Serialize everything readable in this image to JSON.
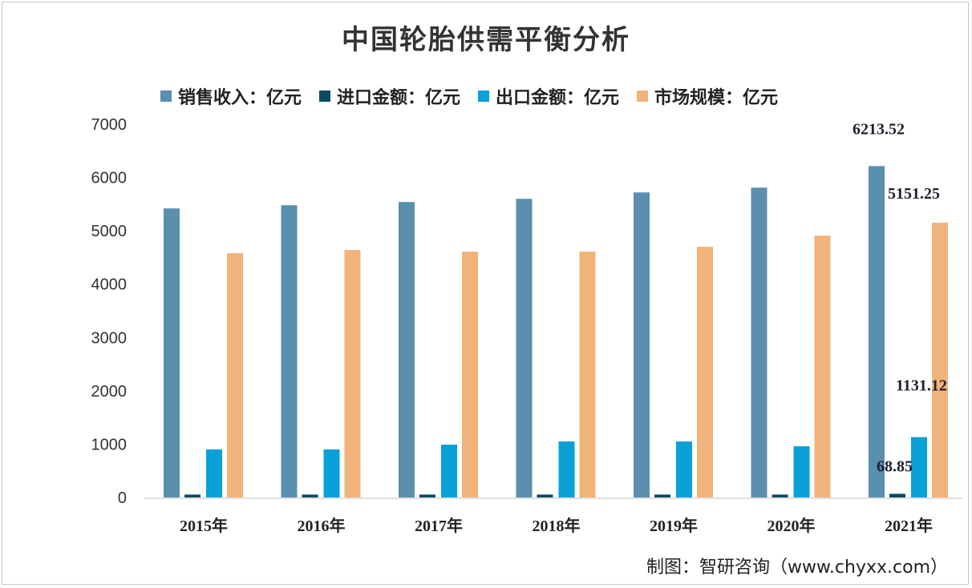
{
  "chart_data": {
    "type": "bar",
    "title": "中国轮胎供需平衡分析",
    "categories": [
      "2015年",
      "2016年",
      "2017年",
      "2018年",
      "2019年",
      "2020年",
      "2021年"
    ],
    "series": [
      {
        "name": "销售收入：亿元",
        "color": "#5b8fae",
        "values": [
          5420,
          5480,
          5540,
          5600,
          5720,
          5810,
          6213.52
        ]
      },
      {
        "name": "进口金额：亿元",
        "color": "#0d4a63",
        "values": [
          55,
          55,
          55,
          55,
          55,
          55,
          68.85
        ]
      },
      {
        "name": "出口金额：亿元",
        "color": "#0aa0d8",
        "values": [
          900,
          900,
          990,
          1050,
          1050,
          960,
          1131.12
        ]
      },
      {
        "name": "市场规模：亿元",
        "color": "#f0b47a",
        "values": [
          4580,
          4640,
          4610,
          4610,
          4700,
          4910,
          5151.25
        ]
      }
    ],
    "data_labels": [
      "6213.52",
      "68.85",
      "1131.12",
      "5151.25"
    ],
    "yticks": [
      0,
      1000,
      2000,
      3000,
      4000,
      5000,
      6000,
      7000
    ],
    "ylim": [
      0,
      7000
    ],
    "grid": false,
    "legend": "top",
    "xlabel": "",
    "ylabel": ""
  },
  "source": "制图：智研咨询（www.chyxx.com）"
}
